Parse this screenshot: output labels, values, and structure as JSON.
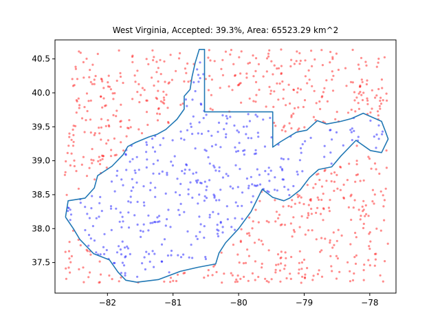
{
  "chart_data": {
    "type": "scatter",
    "title": "West Virginia, Accepted: 39.3%, Area: 65523.29 km^2",
    "xlabel": "",
    "ylabel": "",
    "xlim": [
      -82.8,
      -77.6
    ],
    "ylim": [
      37.05,
      40.78
    ],
    "x_ticks": [
      -82,
      -81,
      -80,
      -79,
      -78
    ],
    "x_tick_labels": [
      "−82",
      "−81",
      "−80",
      "−79",
      "−78"
    ],
    "y_ticks": [
      37.5,
      38.0,
      38.5,
      39.0,
      39.5,
      40.0,
      40.5
    ],
    "y_tick_labels": [
      "37.5",
      "38.0",
      "38.5",
      "39.0",
      "39.5",
      "40.0",
      "40.5"
    ],
    "grid": false,
    "legend": "none",
    "colors": {
      "accepted": "#0000ff",
      "rejected": "#ff0000",
      "boundary": "#1f77b4"
    },
    "sample_bounds": {
      "lon": [
        -82.65,
        -77.72
      ],
      "lat": [
        37.2,
        40.64
      ]
    },
    "accepted_fraction": 0.393,
    "approx_point_count": 1100,
    "boundary": [
      [
        -82.64,
        38.17
      ],
      [
        -82.6,
        38.41
      ],
      [
        -82.34,
        38.45
      ],
      [
        -82.2,
        38.6
      ],
      [
        -82.15,
        38.78
      ],
      [
        -81.93,
        38.92
      ],
      [
        -81.76,
        39.09
      ],
      [
        -81.69,
        39.21
      ],
      [
        -81.57,
        39.27
      ],
      [
        -81.37,
        39.35
      ],
      [
        -81.24,
        39.39
      ],
      [
        -81.11,
        39.46
      ],
      [
        -80.94,
        39.61
      ],
      [
        -80.83,
        39.76
      ],
      [
        -80.83,
        39.95
      ],
      [
        -80.74,
        40.05
      ],
      [
        -80.71,
        40.24
      ],
      [
        -80.66,
        40.45
      ],
      [
        -80.6,
        40.64
      ],
      [
        -80.52,
        40.64
      ],
      [
        -80.52,
        39.72
      ],
      [
        -79.48,
        39.72
      ],
      [
        -79.48,
        39.2
      ],
      [
        -79.36,
        39.28
      ],
      [
        -79.12,
        39.42
      ],
      [
        -78.96,
        39.45
      ],
      [
        -78.8,
        39.59
      ],
      [
        -78.66,
        39.54
      ],
      [
        -78.44,
        39.58
      ],
      [
        -78.28,
        39.62
      ],
      [
        -78.1,
        39.7
      ],
      [
        -77.82,
        39.58
      ],
      [
        -77.76,
        39.43
      ],
      [
        -77.72,
        39.32
      ],
      [
        -77.82,
        39.12
      ],
      [
        -77.99,
        39.15
      ],
      [
        -78.21,
        39.3
      ],
      [
        -78.44,
        39.07
      ],
      [
        -78.58,
        38.91
      ],
      [
        -78.78,
        38.87
      ],
      [
        -78.92,
        38.75
      ],
      [
        -79.06,
        38.57
      ],
      [
        -79.22,
        38.45
      ],
      [
        -79.31,
        38.41
      ],
      [
        -79.48,
        38.46
      ],
      [
        -79.64,
        38.58
      ],
      [
        -79.81,
        38.25
      ],
      [
        -80.0,
        38.0
      ],
      [
        -80.2,
        37.79
      ],
      [
        -80.3,
        37.64
      ],
      [
        -80.35,
        37.48
      ],
      [
        -80.62,
        37.43
      ],
      [
        -80.89,
        37.37
      ],
      [
        -81.22,
        37.25
      ],
      [
        -81.55,
        37.21
      ],
      [
        -81.72,
        37.24
      ],
      [
        -81.84,
        37.36
      ],
      [
        -81.97,
        37.54
      ],
      [
        -82.21,
        37.63
      ],
      [
        -82.42,
        37.84
      ],
      [
        -82.52,
        38.0
      ],
      [
        -82.64,
        38.17
      ]
    ]
  }
}
